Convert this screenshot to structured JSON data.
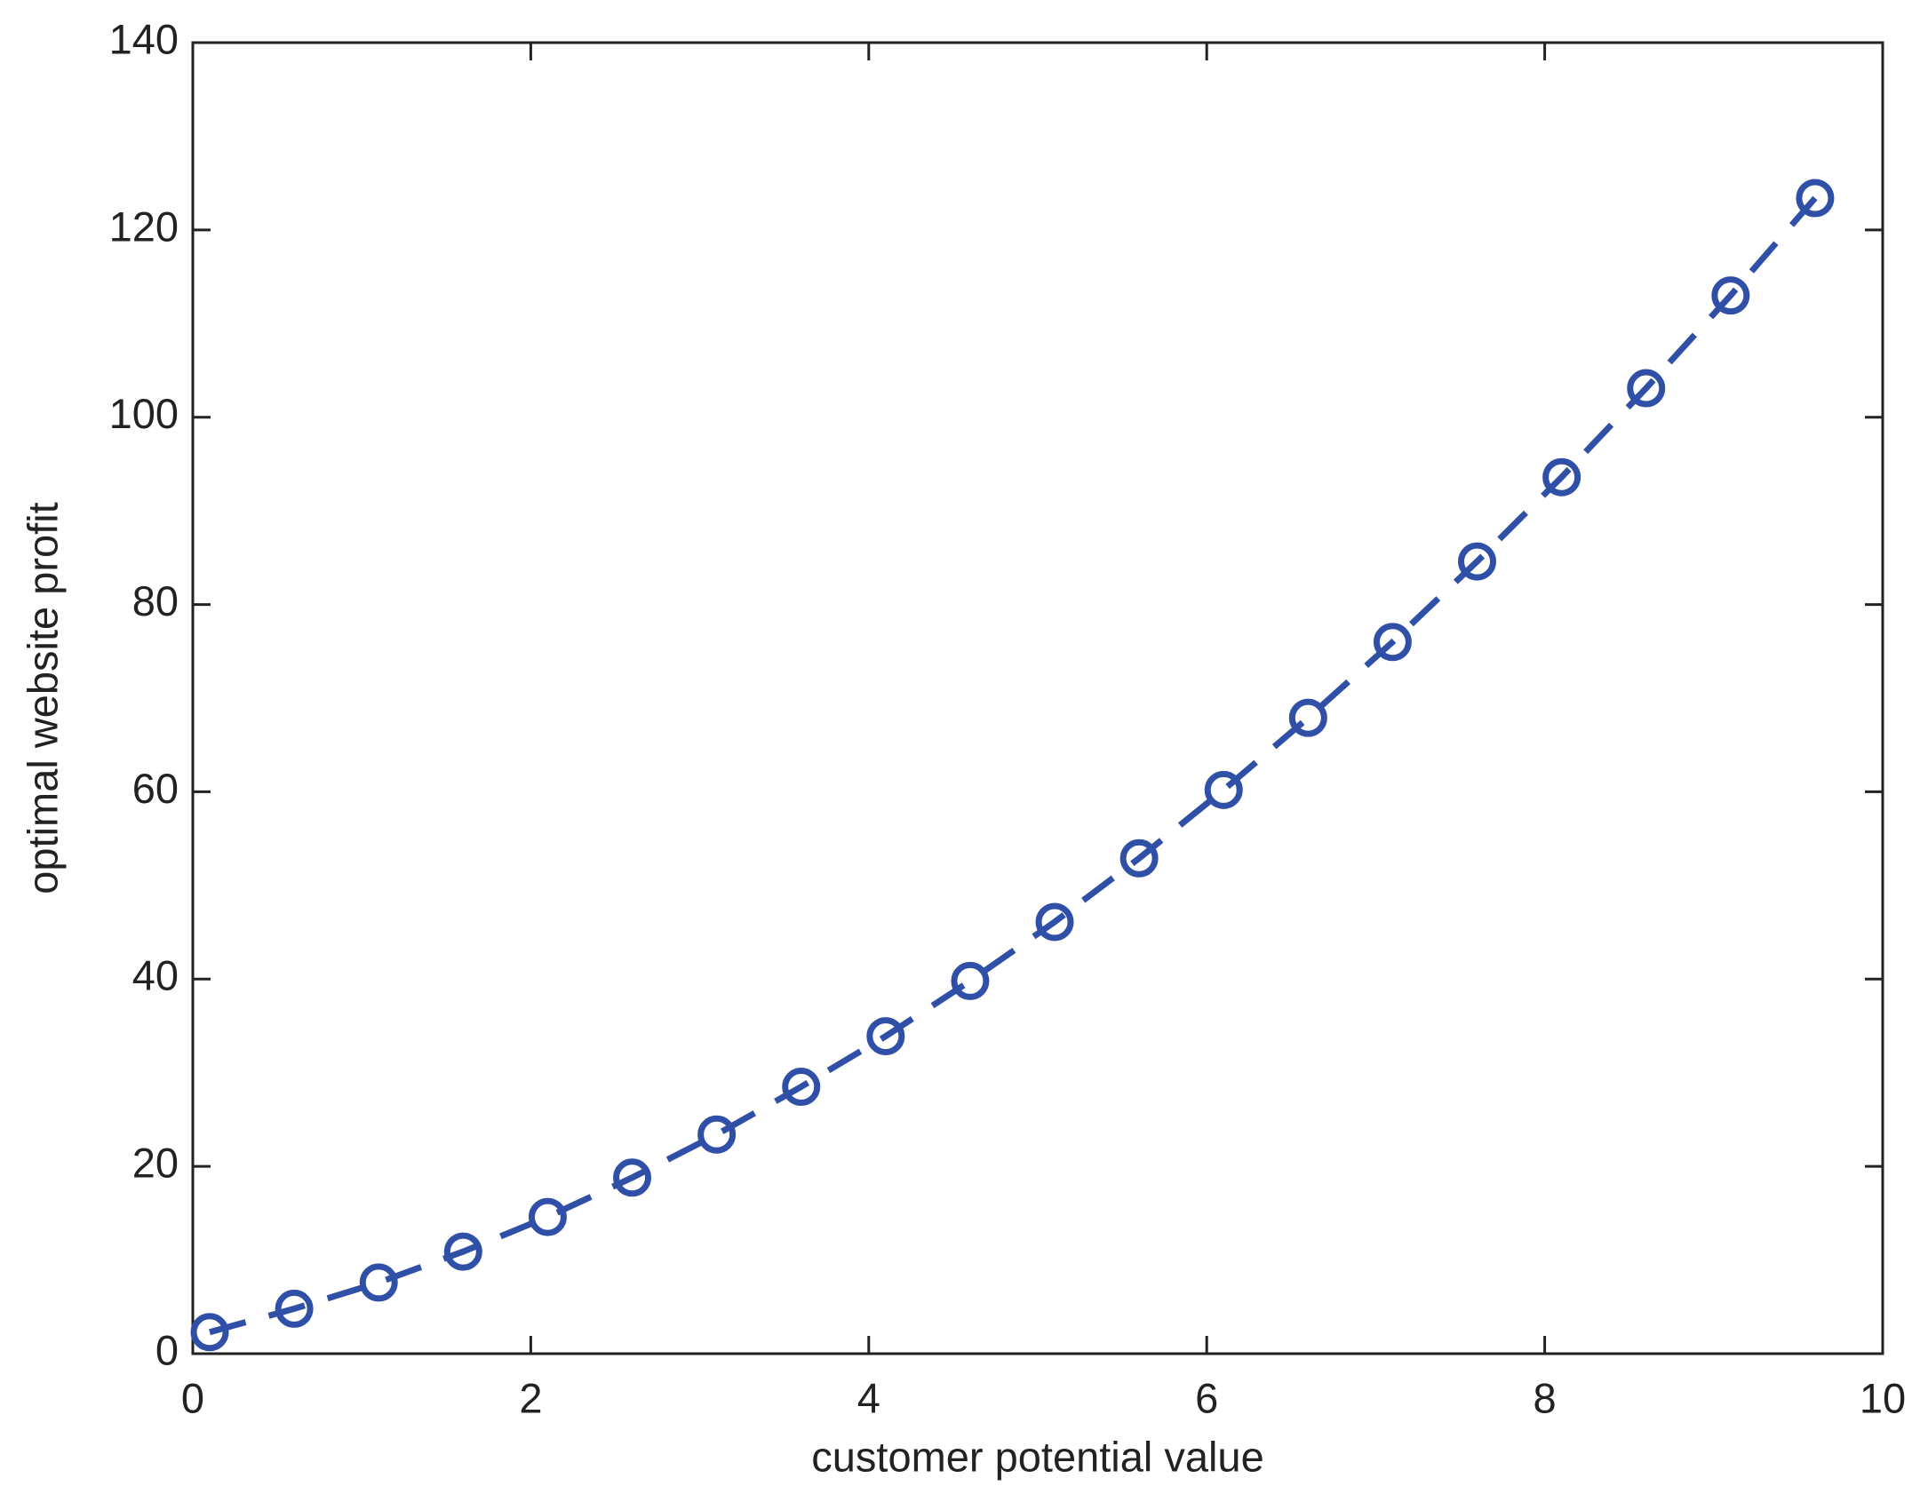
{
  "chart_data": {
    "type": "line",
    "xlabel": "customer potential value",
    "ylabel": "optimal website profit",
    "x": [
      0.1,
      0.6,
      1.1,
      1.6,
      2.1,
      2.6,
      3.1,
      3.6,
      4.1,
      4.6,
      5.1,
      5.6,
      6.1,
      6.6,
      7.1,
      7.6,
      8.1,
      8.6,
      9.1,
      9.6
    ],
    "values": [
      2.3,
      4.8,
      7.6,
      10.9,
      14.6,
      18.8,
      23.4,
      28.5,
      33.9,
      39.8,
      46.1,
      52.9,
      60.2,
      67.9,
      76.0,
      84.6,
      93.6,
      103.1,
      113.0,
      123.4
    ],
    "color": "#3050a8",
    "line_style": "dashed",
    "marker": "circle",
    "xlim": [
      0,
      10
    ],
    "xticks": [
      0,
      2,
      4,
      6,
      8,
      10
    ],
    "ylim": [
      0,
      140
    ],
    "yticks": [
      0,
      20,
      40,
      60,
      80,
      100,
      120,
      140
    ],
    "grid": false
  }
}
